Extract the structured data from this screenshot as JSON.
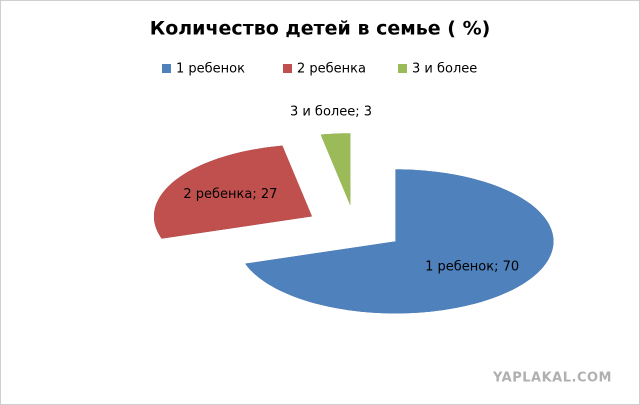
{
  "chart_data": {
    "type": "pie3d",
    "title": "Количество детей в семье ( %)",
    "categories": [
      "1 ребенок",
      "2 ребенка",
      "3 и более"
    ],
    "values": [
      70,
      27,
      3
    ],
    "value_labels": [
      "1 ребенок; 70",
      "2 ребенка; 27",
      "3 и более; 3"
    ],
    "colors": [
      "#4f81bd",
      "#c0504d",
      "#9bbb59"
    ],
    "side_colors": [
      "#385d8a",
      "#7a2d2b",
      "#6b8a33"
    ],
    "legend": "top",
    "watermark": "YAPLAKAL.COM"
  }
}
